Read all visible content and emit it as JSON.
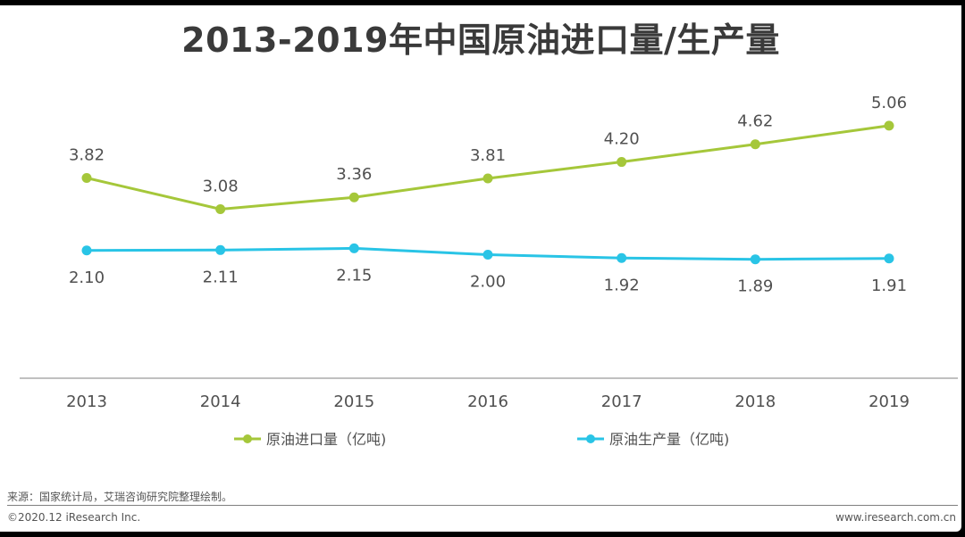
{
  "header": {
    "title": "2013-2019年中国原油进口量/生产量"
  },
  "chart_data": {
    "type": "line",
    "title": "2013-2019年中国原油进口量/生产量",
    "categories": [
      "2013",
      "2014",
      "2015",
      "2016",
      "2017",
      "2018",
      "2019"
    ],
    "series": [
      {
        "name": "原油进口量（亿吨)",
        "color": "#a5c73a",
        "values": [
          3.82,
          3.08,
          3.36,
          3.81,
          4.2,
          4.62,
          5.06
        ],
        "labels": [
          "3.82",
          "3.08",
          "3.36",
          "3.81",
          "4.20",
          "4.62",
          "5.06"
        ]
      },
      {
        "name": "原油生产量（亿吨)",
        "color": "#29c4e6",
        "values": [
          2.1,
          2.11,
          2.15,
          2.0,
          1.92,
          1.89,
          1.91
        ],
        "labels": [
          "2.10",
          "2.11",
          "2.15",
          "2.00",
          "1.92",
          "1.89",
          "1.91"
        ]
      }
    ],
    "xlabel": "",
    "ylabel": "",
    "ylim": [
      0,
      6
    ],
    "legend": "bottom"
  },
  "footer": {
    "source": "来源：国家统计局，艾瑞咨询研究院整理绘制。",
    "copyright": "©2020.12 iResearch Inc.",
    "website": "www.iresearch.com.cn"
  }
}
